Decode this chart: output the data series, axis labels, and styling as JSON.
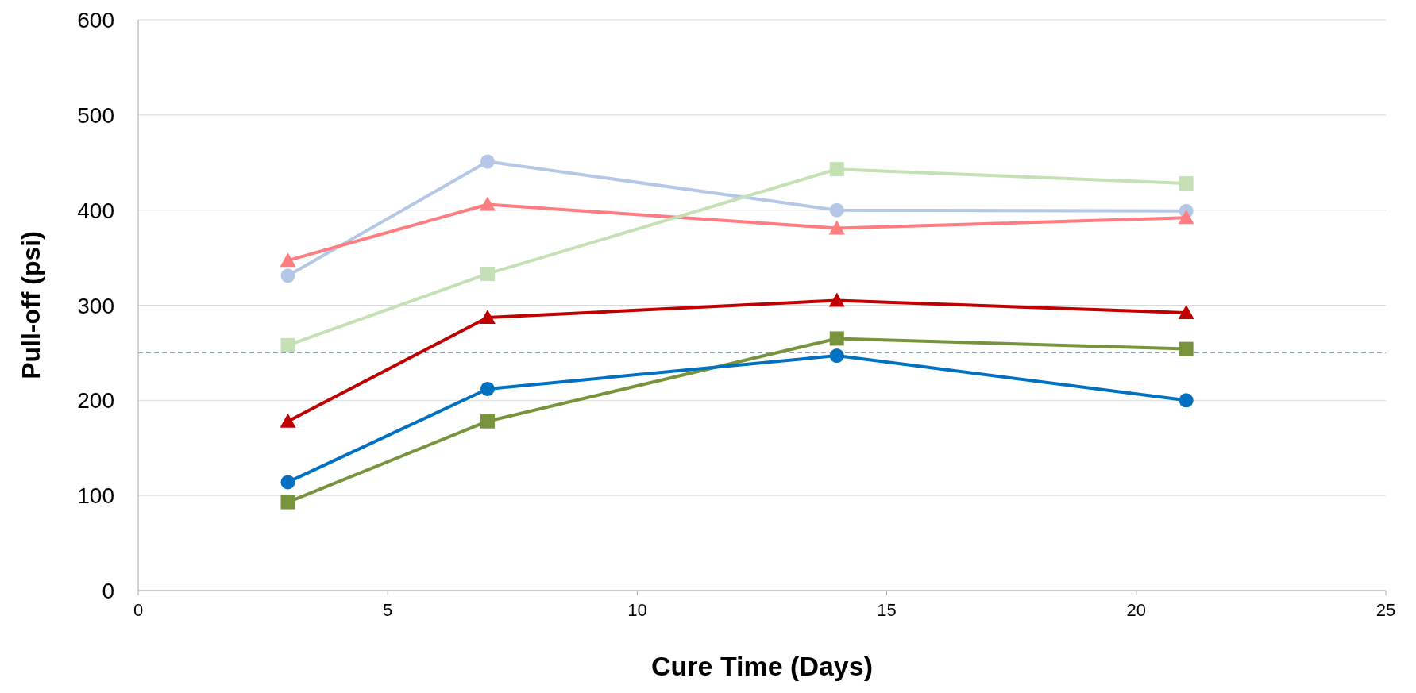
{
  "chart_data": {
    "type": "line",
    "xlabel": "Cure Time (Days)",
    "ylabel": "Pull-off (psi)",
    "xlim": [
      0,
      25
    ],
    "xticks": [
      0,
      5,
      10,
      15,
      20,
      25
    ],
    "ylim": [
      0,
      600
    ],
    "yticks": [
      0,
      100,
      200,
      300,
      400,
      500,
      600
    ],
    "grid": "y",
    "x": [
      3,
      7,
      14,
      21
    ],
    "series": [
      {
        "color": "#b4c7e7",
        "marker": "circle",
        "values": [
          331,
          451,
          400,
          399
        ]
      },
      {
        "color": "#ff7c80",
        "marker": "triangle",
        "values": [
          347,
          406,
          381,
          392
        ]
      },
      {
        "color": "#c5e0b4",
        "marker": "square",
        "values": [
          258,
          333,
          443,
          428
        ]
      },
      {
        "color": "#c00000",
        "marker": "triangle",
        "values": [
          178,
          287,
          305,
          292
        ]
      },
      {
        "color": "#77933c",
        "marker": "square",
        "values": [
          93,
          178,
          265,
          254
        ]
      },
      {
        "color": "#0070c0",
        "marker": "circle",
        "values": [
          114,
          212,
          247,
          200
        ]
      }
    ],
    "ref_lines": [
      {
        "axis": "y",
        "value": 250,
        "color": "#8497b0",
        "line_style": "dashed"
      }
    ]
  }
}
